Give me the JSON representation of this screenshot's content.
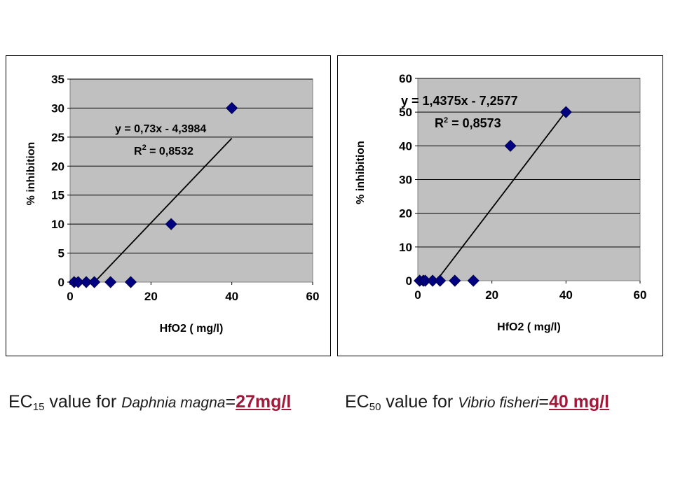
{
  "chart_data": [
    {
      "type": "scatter",
      "title": "",
      "xlabel": "HfO2 ( mg/l)",
      "ylabel": "% inhibition",
      "xlim": [
        0,
        60
      ],
      "ylim": [
        0,
        35
      ],
      "xticks": [
        "0",
        "20",
        "40",
        "60"
      ],
      "yticks": [
        "0",
        "5",
        "10",
        "15",
        "20",
        "25",
        "30",
        "35"
      ],
      "grid": true,
      "legend": "none",
      "marker": "diamond",
      "marker_color": "#000080",
      "plot_bg": "#c0c0c0",
      "points": [
        {
          "x": 1,
          "y": 0
        },
        {
          "x": 2,
          "y": 0
        },
        {
          "x": 4,
          "y": 0
        },
        {
          "x": 6,
          "y": 0
        },
        {
          "x": 10,
          "y": 0
        },
        {
          "x": 15,
          "y": 0
        },
        {
          "x": 25,
          "y": 10
        },
        {
          "x": 40,
          "y": 30
        }
      ],
      "trendline": {
        "slope": 0.73,
        "intercept": -4.3984,
        "x_range": [
          6.03,
          40
        ]
      },
      "equation_text": "y = 0,73x - 4,3984",
      "r2_prefix": "R",
      "r2_exponent": "2",
      "r2_value": " = 0,8532"
    },
    {
      "type": "scatter",
      "title": "",
      "xlabel": "HfO2 ( mg/l)",
      "ylabel": "% inhibition",
      "xlim": [
        0,
        60
      ],
      "ylim": [
        0,
        60
      ],
      "xticks": [
        "0",
        "20",
        "40",
        "60"
      ],
      "yticks": [
        "0",
        "10",
        "20",
        "30",
        "40",
        "50",
        "60"
      ],
      "grid": true,
      "legend": "none",
      "marker": "diamond",
      "marker_color": "#000080",
      "plot_bg": "#c0c0c0",
      "points": [
        {
          "x": 0.5,
          "y": 0
        },
        {
          "x": 1.5,
          "y": 0
        },
        {
          "x": 2,
          "y": 0
        },
        {
          "x": 4,
          "y": 0
        },
        {
          "x": 6,
          "y": 0
        },
        {
          "x": 10,
          "y": 0
        },
        {
          "x": 15,
          "y": 0
        },
        {
          "x": 25,
          "y": 40
        },
        {
          "x": 40,
          "y": 50
        }
      ],
      "trendline": {
        "slope": 1.4375,
        "intercept": -7.2577,
        "x_range": [
          5.05,
          40
        ]
      },
      "equation_text": "y = 1,4375x - 7,2577",
      "r2_prefix": "R",
      "r2_exponent": "2",
      "r2_value": " = 0,8573"
    }
  ],
  "captions": [
    {
      "prefix": "EC",
      "subscript": "15",
      "middle": " value for ",
      "species": "Daphnia magna",
      "equals": "=",
      "value": "27mg/l"
    },
    {
      "prefix": "EC",
      "subscript": "50",
      "middle": " value for ",
      "species": "Vibrio fisheri",
      "equals": "=",
      "value": "40 mg/l"
    }
  ]
}
